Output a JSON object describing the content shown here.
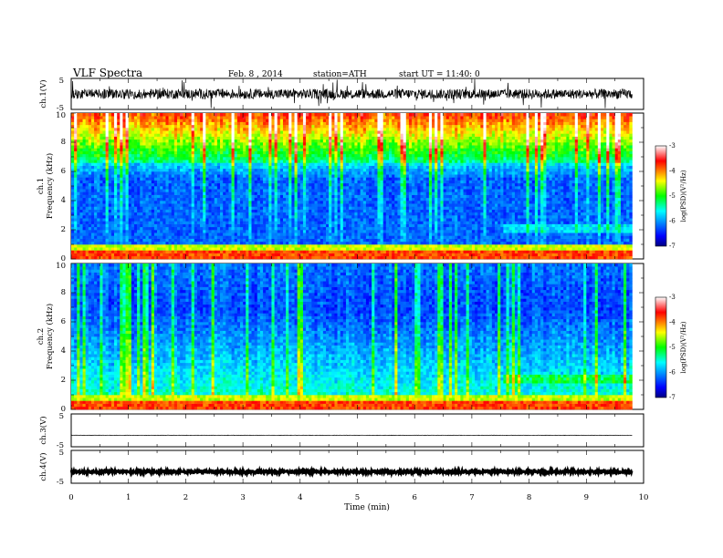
{
  "header": {
    "title": "VLF Spectra",
    "date": "Feb. 8 , 2014",
    "station": "station=ATH",
    "start_ut": "start UT =  11:40: 0"
  },
  "chart_data": [
    {
      "type": "line",
      "name": "ch1-waveform",
      "ylabel": "ch.1(V)",
      "ylim": [
        -5,
        5
      ],
      "yticks": [
        "5",
        "-5"
      ],
      "x_range_min": [
        0,
        9.8
      ],
      "level": 0,
      "noise_amplitude": 1.6
    },
    {
      "type": "heatmap",
      "name": "ch1-spectrogram",
      "ylabel_channel": "ch.1",
      "ylabel": "Frequency  (kHz)",
      "ylim": [
        0,
        10
      ],
      "yticks": [
        "0",
        "2",
        "4",
        "6",
        "8",
        "10"
      ],
      "colorbar": {
        "label": "log(PSD)(V²/Hz)",
        "range": [
          -7,
          -3
        ],
        "ticks": [
          "-3",
          "-4",
          "-5",
          "-6",
          "-7"
        ]
      }
    },
    {
      "type": "heatmap",
      "name": "ch2-spectrogram",
      "ylabel_channel": "ch.2",
      "ylabel": "Frequency  (kHz)",
      "ylim": [
        0,
        10
      ],
      "yticks": [
        "0",
        "2",
        "4",
        "6",
        "8",
        "10"
      ],
      "colorbar": {
        "label": "log(PSD)(V²/Hz)",
        "range": [
          -7,
          -3
        ],
        "ticks": [
          "-3",
          "-4",
          "-5",
          "-6",
          "-7"
        ]
      }
    },
    {
      "type": "line",
      "name": "ch3-waveform",
      "ylabel": "ch.3(V)",
      "ylim": [
        -5,
        5
      ],
      "yticks": [
        "5",
        "-5"
      ],
      "x_range_min": [
        0,
        9.8
      ],
      "level": -1.5,
      "noise_amplitude": 0.05
    },
    {
      "type": "line",
      "name": "ch4-waveform",
      "ylabel": "ch.4(V)",
      "ylim": [
        -5,
        5
      ],
      "yticks": [
        "5",
        "-5"
      ],
      "x_range_min": [
        0,
        9.8
      ],
      "level": -1.5,
      "noise_amplitude": 0.35
    }
  ],
  "x_axis": {
    "xlabel": "Time  (min)",
    "xlim": [
      0,
      10
    ],
    "ticks": [
      "0",
      "1",
      "2",
      "3",
      "4",
      "5",
      "6",
      "7",
      "8",
      "9",
      "10"
    ]
  },
  "colors": {
    "waveform": "#000000",
    "colormap": [
      "#000080",
      "#0000ff",
      "#00ffff",
      "#00ff00",
      "#ffff00",
      "#ff0000",
      "#ffffff"
    ]
  }
}
